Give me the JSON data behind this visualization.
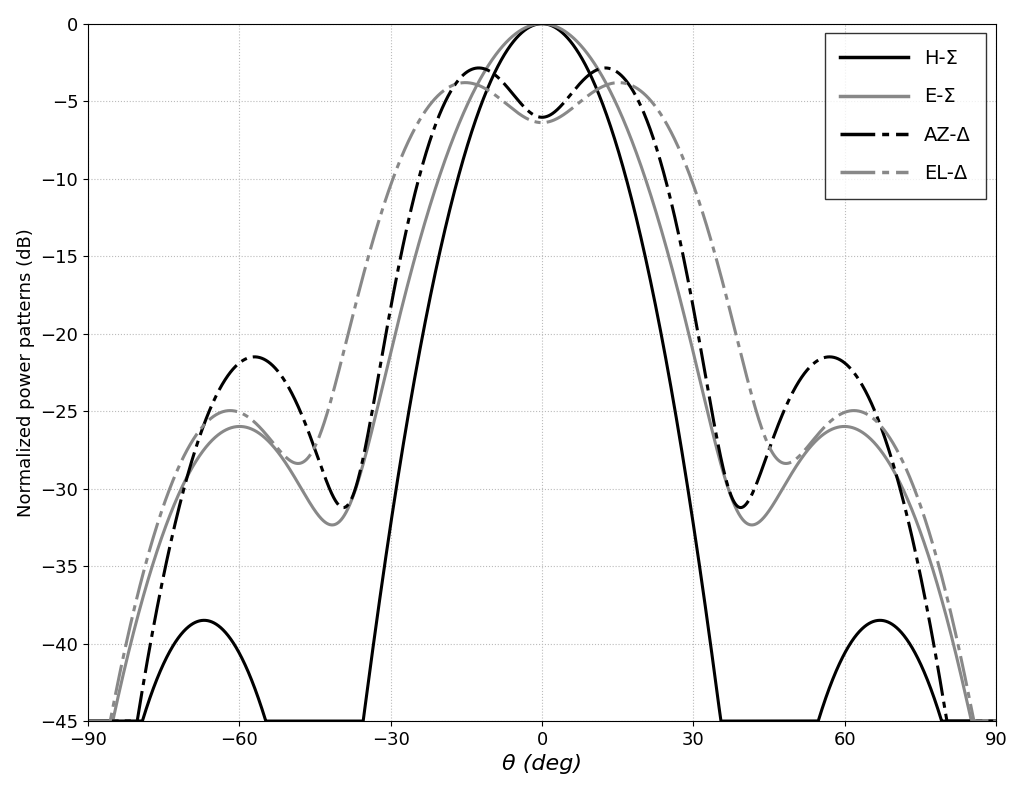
{
  "xlabel": "θ (deg)",
  "ylabel": "Normalized power patterns (dB)",
  "xlim": [
    -90,
    90
  ],
  "ylim": [
    -45,
    0
  ],
  "xticks": [
    -90,
    -60,
    -30,
    0,
    30,
    60,
    90
  ],
  "yticks": [
    0,
    -5,
    -10,
    -15,
    -20,
    -25,
    -30,
    -35,
    -40,
    -45
  ],
  "legend": {
    "H_sigma": "H-Σ",
    "E_sigma": "E-Σ",
    "AZ_delta": "AZ-Δ",
    "EL_delta": "EL-Δ"
  },
  "colors": {
    "H_sigma": "#000000",
    "E_sigma": "#888888",
    "AZ_delta": "#000000",
    "EL_delta": "#888888"
  },
  "background": "#ffffff",
  "grid_color": "#bbbbbb"
}
